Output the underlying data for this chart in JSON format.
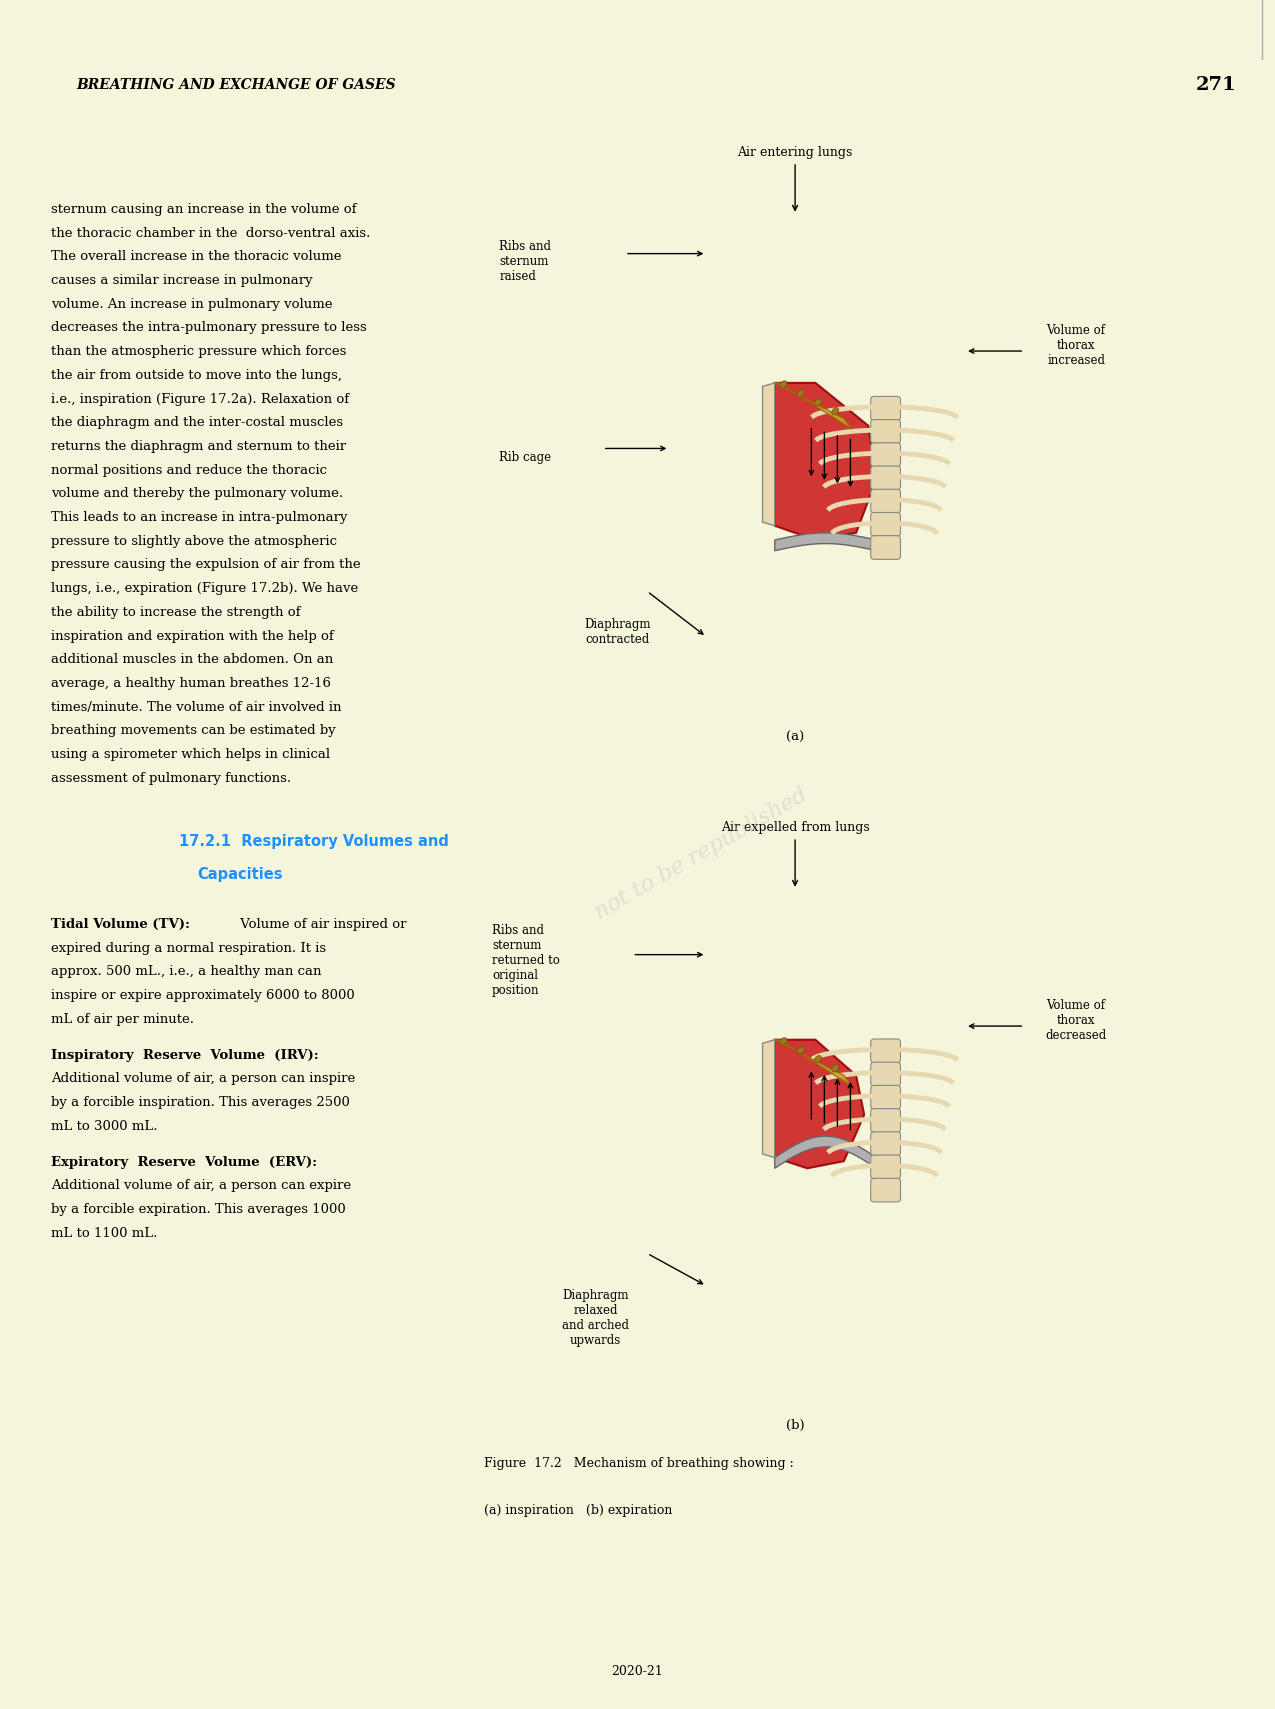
{
  "page_bg": "#f5f5dc",
  "header_bg": "#d3d3d3",
  "content_bg": "#ffffff",
  "header_text": "Breathing and Exchange of Gases",
  "header_page": "271",
  "header_font_color": "#000000",
  "footer_text": "2020-21",
  "body_text_left": [
    "sternum causing an increase in the volume of",
    "the thoracic chamber in the  dorso-ventral axis.",
    "The overall increase in the thoracic volume",
    "causes a similar increase in pulmonary",
    "volume. An increase in pulmonary volume",
    "decreases the intra-pulmonary pressure to less",
    "than the atmospheric pressure which forces",
    "the air from outside to move into the lungs,",
    "i.e., inspiration (Figure 17.2a). Relaxation of",
    "the diaphragm and the inter-costal muscles",
    "returns the diaphragm and sternum to their",
    "normal positions and reduce the thoracic",
    "volume and thereby the pulmonary volume.",
    "This leads to an increase in intra-pulmonary",
    "pressure to slightly above the atmospheric",
    "pressure causing the expulsion of air from the",
    "lungs, i.e., expiration (Figure 17.2b). We have",
    "the ability to increase the strength of",
    "inspiration and expiration with the help of",
    "additional muscles in the abdomen. On an",
    "average, a healthy human breathes 12-16",
    "times/minute. The volume of air involved in",
    "breathing movements can be estimated by",
    "using a spirometer which helps in clinical",
    "assessment of pulmonary functions."
  ],
  "section_heading": "17.2.1  Respiratory Volumes and\n         Capacities",
  "section_heading_color": "#1e90ff",
  "body_text_left2": [
    {
      "bold": "Tidal Volume (TV):",
      "normal": " Volume of air inspired or"
    },
    {
      "bold": "",
      "normal": "expired during a normal respiration. It is"
    },
    {
      "bold": "",
      "normal": "approx. 500 mL., i.e., a healthy man can"
    },
    {
      "bold": "",
      "normal": "inspire or expire approximately 6000 to 8000"
    },
    {
      "bold": "",
      "normal": "mL of air per minute."
    }
  ],
  "body_text_left3": [
    {
      "bold": "Inspiratory  Reserve  Volume  (IRV):",
      "normal": ""
    },
    {
      "bold": "",
      "normal": "Additional volume of air, a person can inspire"
    },
    {
      "bold": "",
      "normal": "by a forcible inspiration. This averages 2500"
    },
    {
      "bold": "",
      "normal": "mL to 3000 mL."
    }
  ],
  "body_text_left4": [
    {
      "bold": "Expiratory  Reserve  Volume  (ERV):",
      "normal": ""
    },
    {
      "bold": "",
      "normal": "Additional volume of air, a person can expire"
    },
    {
      "bold": "",
      "normal": "by a forcible expiration. This averages 1000"
    },
    {
      "bold": "",
      "normal": "mL to 1100 mL."
    }
  ],
  "figure_caption": "Figure  17.2   Mechanism of breathing showing :\n(a) inspiration   (b) expiration",
  "diagram_labels_top": {
    "air_entering": "Air entering lungs",
    "ribs_sternum_raised": "Ribs and\nsternum\nraised",
    "rib_cage": "Rib cage",
    "diaphragm_contracted": "Diaphragm\ncontracted",
    "volume_thorax_increased": "Volume of\nthorax\nincreased",
    "label_a": "(a)"
  },
  "diagram_labels_bottom": {
    "air_expelled": "Air expelled from lungs",
    "ribs_sternum_returned": "Ribs and\nsternum\nreturned to\noriginal\nposition",
    "diaphragm_relaxed": "Diaphragm\nrelaxed\nand arched\nupwards",
    "volume_thorax_decreased": "Volume of\nthorax\ndecreased",
    "label_b": "(b)"
  },
  "ncert_watermark": "not to be republished"
}
